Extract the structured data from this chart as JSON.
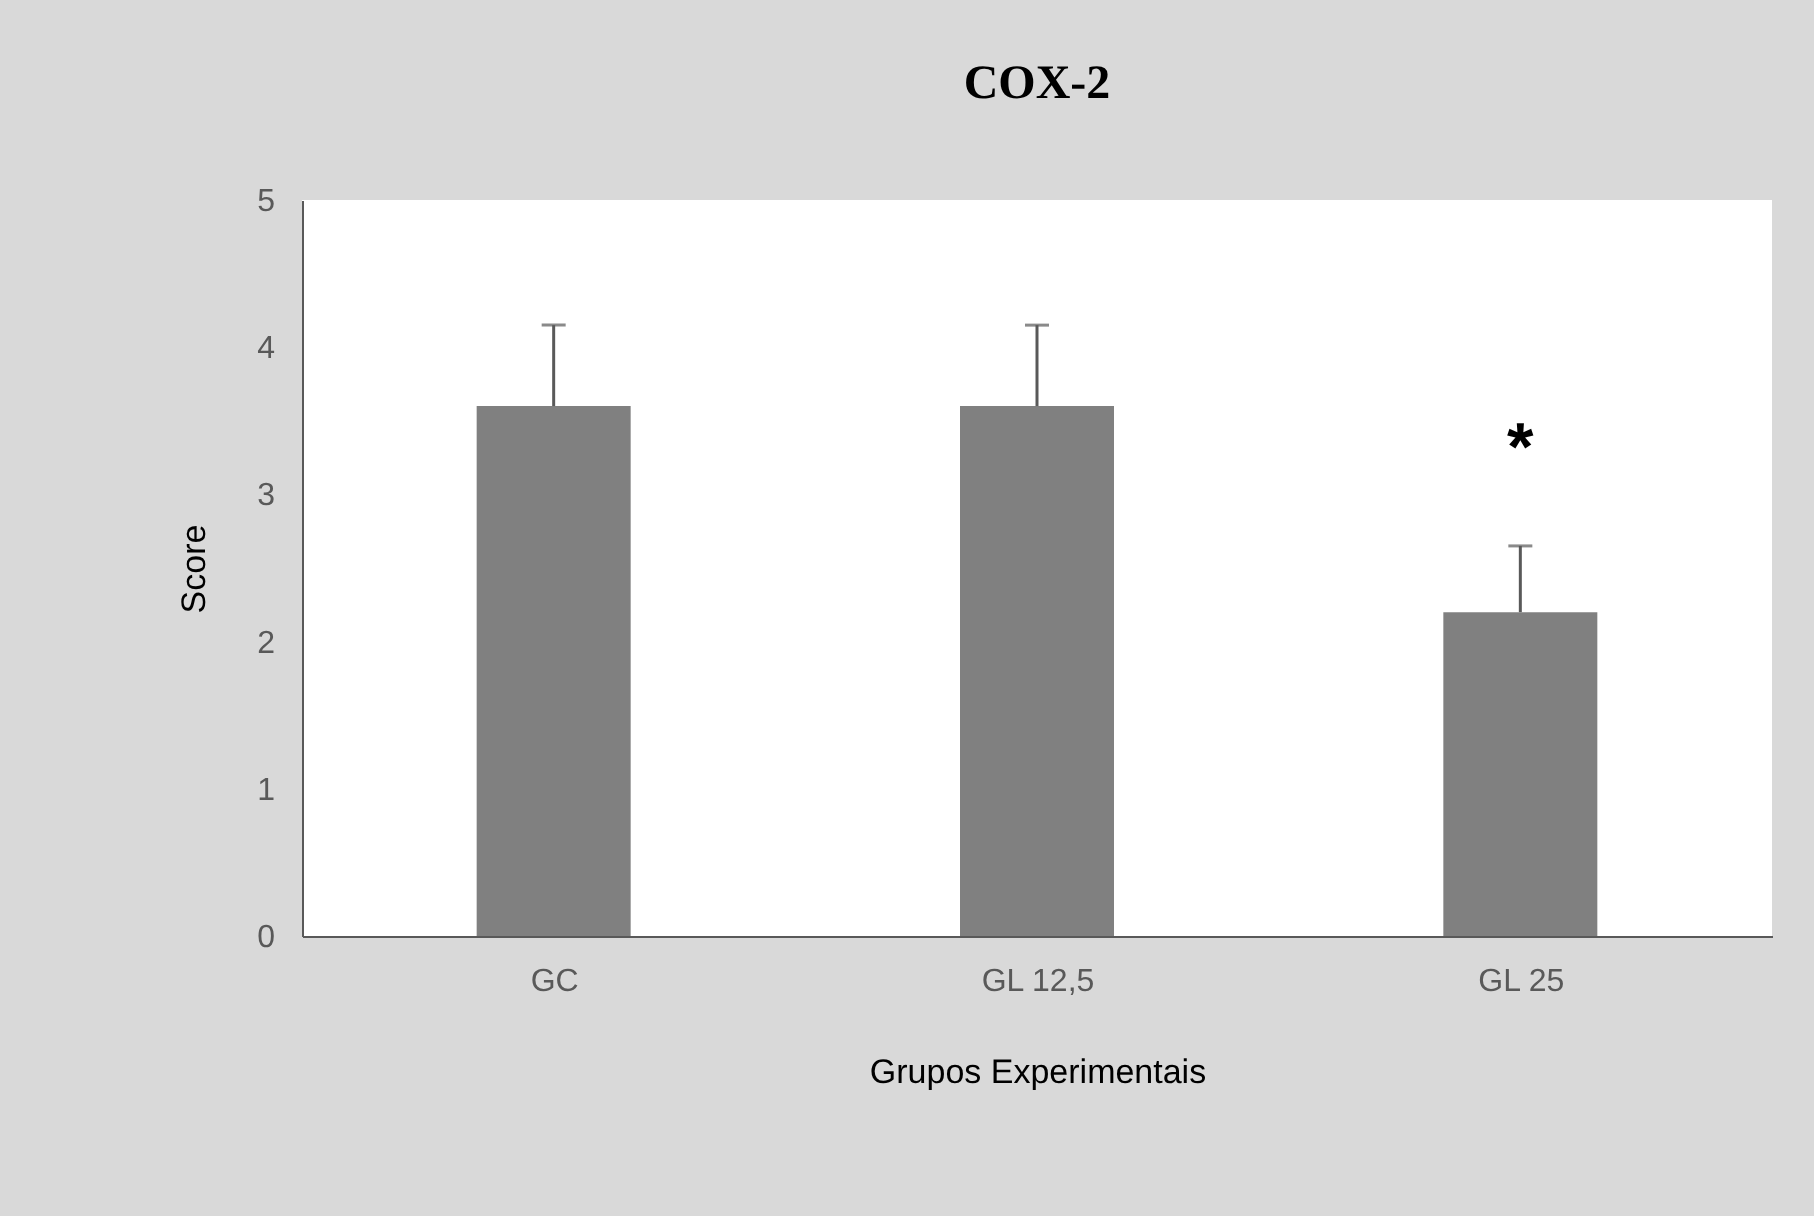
{
  "chart_data": {
    "type": "bar",
    "title": "COX-2",
    "xlabel": "Grupos Experimentais",
    "ylabel": "Score",
    "categories": [
      "GC",
      "GL 12,5",
      "GL 25"
    ],
    "values": [
      3.6,
      3.6,
      2.2
    ],
    "errors": [
      [
        3.6,
        4.15
      ],
      [
        3.6,
        4.15
      ],
      [
        2.2,
        2.65
      ]
    ],
    "color": "#808080",
    "ylim": [
      0,
      5
    ],
    "yticks": [
      0,
      1,
      2,
      3,
      4,
      5
    ],
    "grid": false,
    "annotations": [
      "*"
    ]
  }
}
